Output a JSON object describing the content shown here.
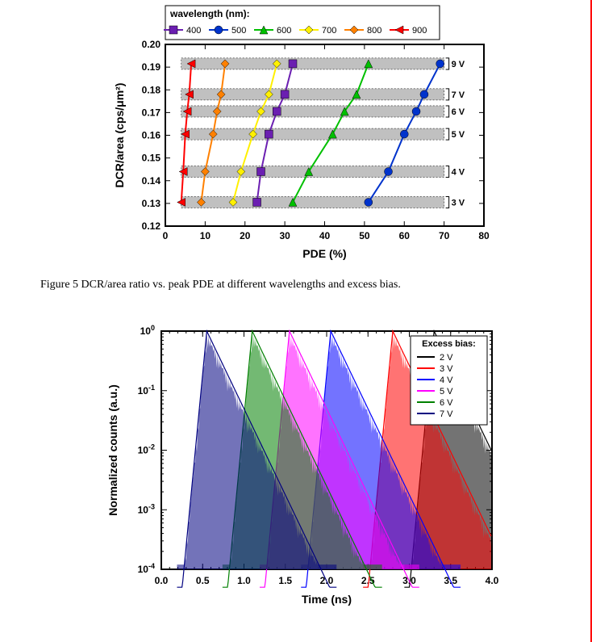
{
  "figure5": {
    "type": "line-scatter",
    "xlabel": "PDE (%)",
    "ylabel": "DCR/area (cps/μm²)",
    "label_fontsize": 14,
    "tick_fontsize": 12,
    "legend_title": "wavelength (nm):",
    "xlim": [
      0,
      80
    ],
    "xtick_step": 10,
    "ylim": [
      0.12,
      0.2
    ],
    "ytick_step": 0.01,
    "plot_bg": "#ffffff",
    "grid_color": "#c0c0c0",
    "series": [
      {
        "label": "400",
        "color": "#6b1fb1",
        "marker": "square",
        "x": [
          23,
          24,
          26,
          28,
          30,
          32
        ],
        "y": [
          0.1305,
          0.144,
          0.1605,
          0.1705,
          0.178,
          0.1915
        ]
      },
      {
        "label": "500",
        "color": "#0033cc",
        "marker": "circle",
        "x": [
          51,
          56,
          60,
          63,
          65,
          69
        ],
        "y": [
          0.1305,
          0.144,
          0.1605,
          0.1705,
          0.178,
          0.1915
        ]
      },
      {
        "label": "600",
        "color": "#00c000",
        "marker": "triangle",
        "x": [
          32,
          36,
          42,
          45,
          48,
          51
        ],
        "y": [
          0.1305,
          0.144,
          0.1605,
          0.1705,
          0.178,
          0.1915
        ]
      },
      {
        "label": "700",
        "color": "#fff000",
        "marker": "diamond",
        "x": [
          17,
          19,
          22,
          24,
          26,
          28
        ],
        "y": [
          0.1305,
          0.144,
          0.1605,
          0.1705,
          0.178,
          0.1915
        ]
      },
      {
        "label": "800",
        "color": "#ff8000",
        "marker": "diamond",
        "x": [
          9,
          10,
          12,
          13,
          14,
          15
        ],
        "y": [
          0.1305,
          0.144,
          0.1605,
          0.1705,
          0.178,
          0.1915
        ]
      },
      {
        "label": "900",
        "color": "#ff0000",
        "marker": "ltri",
        "x": [
          4,
          4.5,
          5,
          5.5,
          6,
          6.5
        ],
        "y": [
          0.1305,
          0.144,
          0.1605,
          0.1705,
          0.178,
          0.1915
        ]
      }
    ],
    "bands": [
      {
        "label": "3 V",
        "y": 0.1305
      },
      {
        "label": "4 V",
        "y": 0.144
      },
      {
        "label": "5 V",
        "y": 0.1605
      },
      {
        "label": "6 V",
        "y": 0.1705
      },
      {
        "label": "7 V",
        "y": 0.178
      },
      {
        "label": "9 V",
        "y": 0.1915
      }
    ],
    "band_color": "#c0c0c0",
    "band_height": 0.005,
    "band_xstart": 4,
    "band_xend": 70
  },
  "caption5": "Figure 5 DCR/area ratio vs. peak PDE at different wavelengths and excess bias.",
  "figure6": {
    "type": "line",
    "xlabel": "Time (ns)",
    "ylabel": "Normalized counts (a.u.)",
    "label_fontsize": 14,
    "tick_fontsize": 12,
    "legend_title": "Excess bias:",
    "xlim": [
      0.0,
      4.0
    ],
    "xtick_step": 0.5,
    "ylim": [
      0.0001,
      1
    ],
    "yscale": "log",
    "yticks": [
      0.0001,
      0.001,
      0.01,
      0.1,
      1
    ],
    "plot_bg": "#ffffff",
    "axis_color": "#000000",
    "series": [
      {
        "label": "2 V",
        "color": "#000000",
        "center": 3.3,
        "ytail": 0.0003
      },
      {
        "label": "3 V",
        "color": "#ff0000",
        "center": 2.8,
        "ytail": 0.0003
      },
      {
        "label": "4 V",
        "color": "#0000ff",
        "center": 2.05,
        "ytail": 0.0003
      },
      {
        "label": "5 V",
        "color": "#ff00ff",
        "center": 1.55,
        "ytail": 0.0003
      },
      {
        "label": "6 V",
        "color": "#008000",
        "center": 1.1,
        "ytail": 0.0003
      },
      {
        "label": "7 V",
        "color": "#000080",
        "center": 0.55,
        "ytail": 0.0003
      }
    ],
    "peak_rise_width": 0.12,
    "peak_fall_width": 0.45
  }
}
